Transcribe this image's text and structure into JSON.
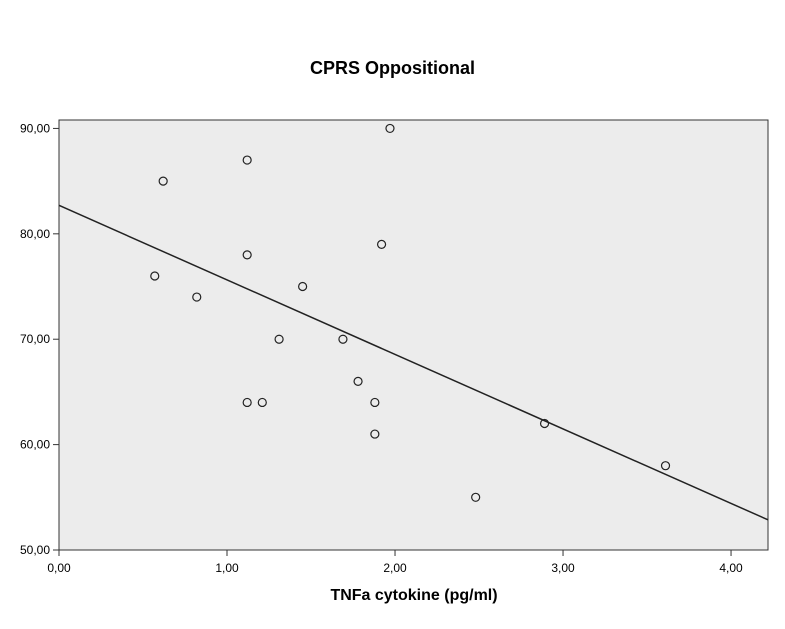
{
  "chart_data": {
    "type": "scatter",
    "title": "CPRS Oppositional",
    "xlabel": "TNFa cytokine (pg/ml)",
    "ylabel": "",
    "xlim": [
      0,
      4.22
    ],
    "ylim": [
      50,
      90.8
    ],
    "x_ticks": [
      0,
      1,
      2,
      3,
      4
    ],
    "x_tick_labels": [
      "0,00",
      "1,00",
      "2,00",
      "3,00",
      "4,00"
    ],
    "y_ticks": [
      50,
      60,
      70,
      80,
      90
    ],
    "y_tick_labels": [
      "50,00",
      "60,00",
      "70,00",
      "80,00",
      "90,00"
    ],
    "grid": false,
    "background_color": "#ececec",
    "marker": "open-circle",
    "points": [
      {
        "x": 0.57,
        "y": 76
      },
      {
        "x": 0.62,
        "y": 85
      },
      {
        "x": 0.82,
        "y": 74
      },
      {
        "x": 1.12,
        "y": 87
      },
      {
        "x": 1.12,
        "y": 78
      },
      {
        "x": 1.12,
        "y": 64
      },
      {
        "x": 1.21,
        "y": 64
      },
      {
        "x": 1.31,
        "y": 70
      },
      {
        "x": 1.45,
        "y": 75
      },
      {
        "x": 1.69,
        "y": 70
      },
      {
        "x": 1.78,
        "y": 66
      },
      {
        "x": 1.88,
        "y": 64
      },
      {
        "x": 1.88,
        "y": 61
      },
      {
        "x": 1.92,
        "y": 79
      },
      {
        "x": 1.97,
        "y": 90
      },
      {
        "x": 2.48,
        "y": 55
      },
      {
        "x": 2.89,
        "y": 62
      },
      {
        "x": 3.61,
        "y": 58
      }
    ],
    "fit_line": {
      "intercept": 82.7,
      "slope": -7.07
    }
  }
}
